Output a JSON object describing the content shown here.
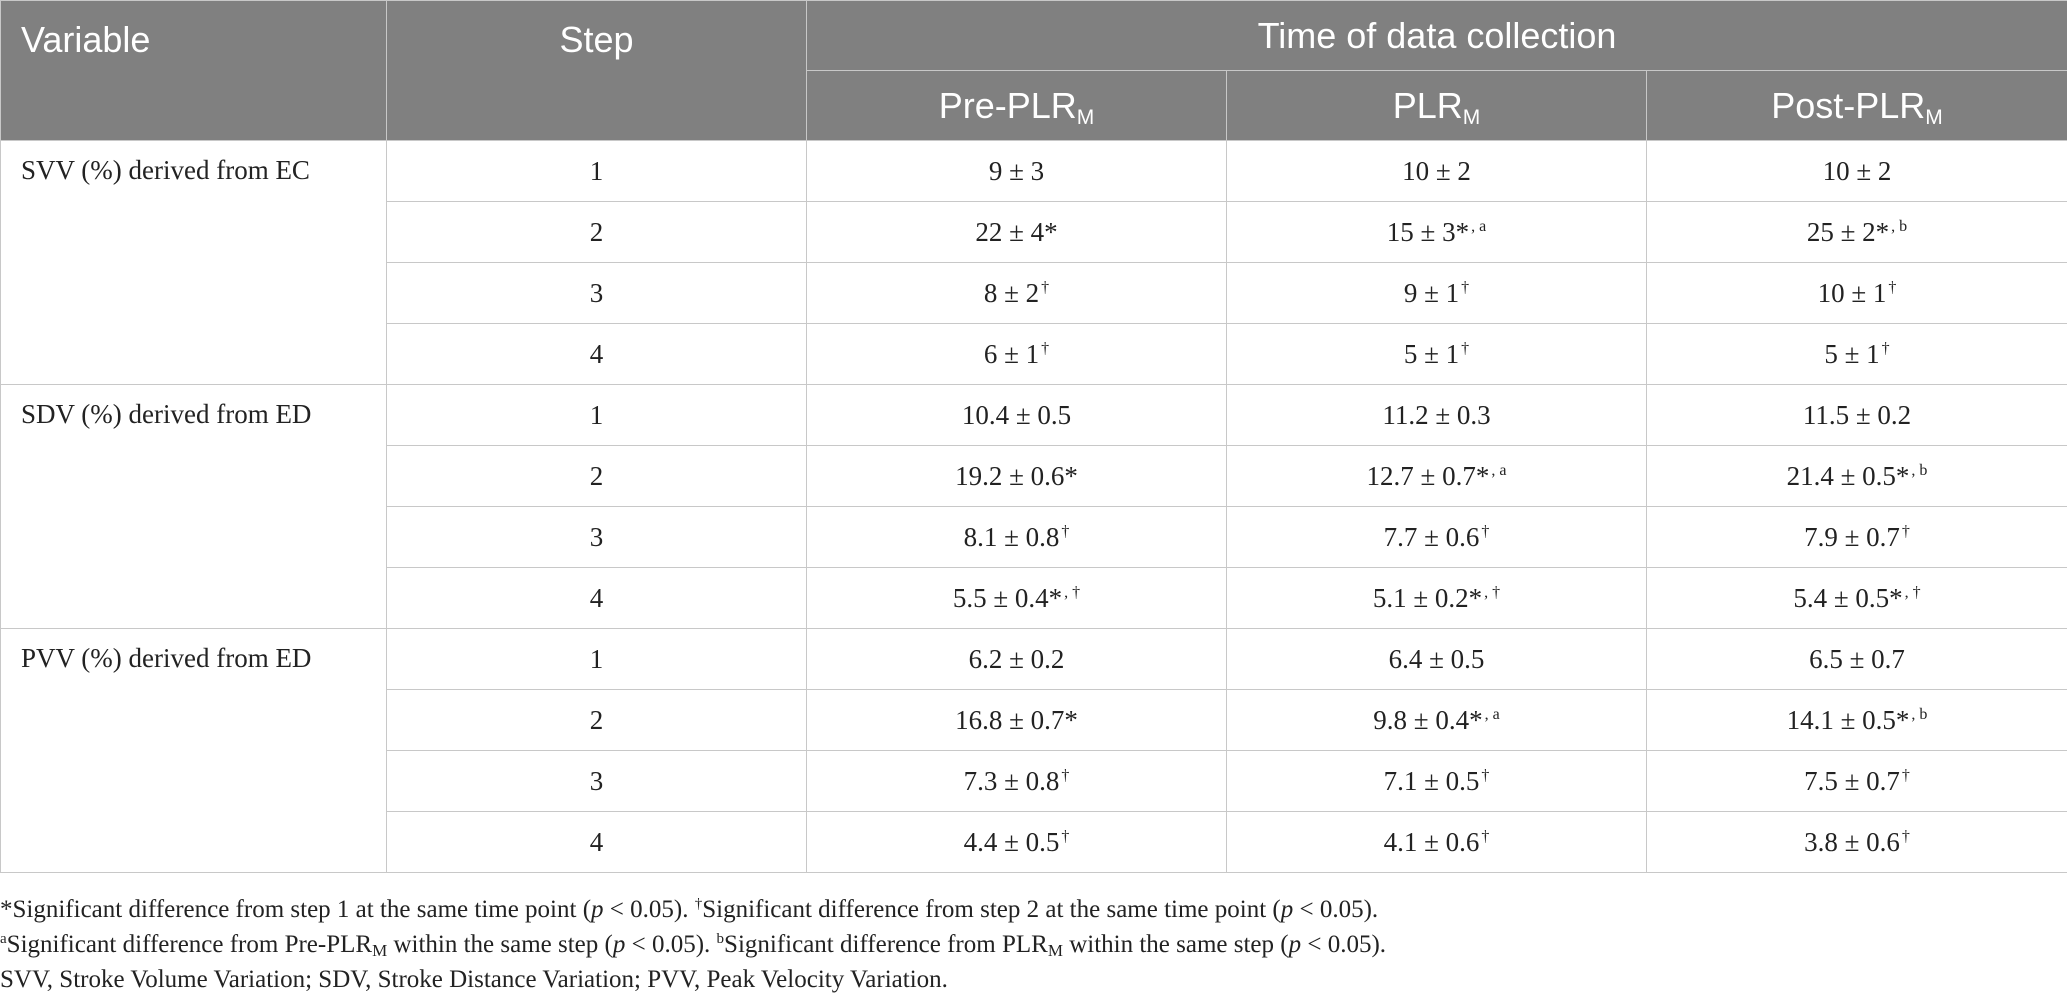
{
  "table": {
    "header": {
      "variable": "Variable",
      "step": "Step",
      "group": "Time of data collection",
      "columns": [
        {
          "base": "Pre-PLR",
          "sub": "M"
        },
        {
          "base": "PLR",
          "sub": "M"
        },
        {
          "base": "Post-PLR",
          "sub": "M"
        }
      ]
    },
    "groups": [
      {
        "variable": "SVV (%) derived from EC",
        "rows": [
          {
            "step": "1",
            "cells": [
              {
                "v": "9 ± 3",
                "s": ""
              },
              {
                "v": "10 ± 2",
                "s": ""
              },
              {
                "v": "10 ± 2",
                "s": ""
              }
            ]
          },
          {
            "step": "2",
            "cells": [
              {
                "v": "22 ± 4*",
                "s": ""
              },
              {
                "v": "15 ± 3*",
                "s": ", a"
              },
              {
                "v": "25 ± 2*",
                "s": ", b"
              }
            ]
          },
          {
            "step": "3",
            "cells": [
              {
                "v": "8 ± 2",
                "s": "†"
              },
              {
                "v": "9 ± 1",
                "s": "†"
              },
              {
                "v": "10 ± 1",
                "s": "†"
              }
            ]
          },
          {
            "step": "4",
            "cells": [
              {
                "v": "6 ± 1",
                "s": "†"
              },
              {
                "v": "5 ± 1",
                "s": "†"
              },
              {
                "v": "5 ± 1",
                "s": "†"
              }
            ]
          }
        ]
      },
      {
        "variable": "SDV (%) derived from ED",
        "rows": [
          {
            "step": "1",
            "cells": [
              {
                "v": "10.4 ± 0.5",
                "s": ""
              },
              {
                "v": "11.2 ± 0.3",
                "s": ""
              },
              {
                "v": "11.5 ± 0.2",
                "s": ""
              }
            ]
          },
          {
            "step": "2",
            "cells": [
              {
                "v": "19.2 ± 0.6*",
                "s": ""
              },
              {
                "v": "12.7 ± 0.7*",
                "s": ", a"
              },
              {
                "v": "21.4 ± 0.5*",
                "s": ", b"
              }
            ]
          },
          {
            "step": "3",
            "cells": [
              {
                "v": "8.1 ± 0.8",
                "s": "†"
              },
              {
                "v": "7.7 ± 0.6",
                "s": "†"
              },
              {
                "v": "7.9 ± 0.7",
                "s": "†"
              }
            ]
          },
          {
            "step": "4",
            "cells": [
              {
                "v": "5.5 ± 0.4*",
                "s": ", †"
              },
              {
                "v": "5.1 ± 0.2*",
                "s": ", †"
              },
              {
                "v": "5.4 ± 0.5*",
                "s": ", †"
              }
            ]
          }
        ]
      },
      {
        "variable": "PVV (%) derived from ED",
        "rows": [
          {
            "step": "1",
            "cells": [
              {
                "v": "6.2 ± 0.2",
                "s": ""
              },
              {
                "v": "6.4 ± 0.5",
                "s": ""
              },
              {
                "v": "6.5 ± 0.7",
                "s": ""
              }
            ]
          },
          {
            "step": "2",
            "cells": [
              {
                "v": "16.8 ± 0.7*",
                "s": ""
              },
              {
                "v": "9.8 ± 0.4*",
                "s": ", a"
              },
              {
                "v": "14.1 ± 0.5*",
                "s": ", b"
              }
            ]
          },
          {
            "step": "3",
            "cells": [
              {
                "v": "7.3 ± 0.8",
                "s": "†"
              },
              {
                "v": "7.1 ± 0.5",
                "s": "†"
              },
              {
                "v": "7.5 ± 0.7",
                "s": "†"
              }
            ]
          },
          {
            "step": "4",
            "cells": [
              {
                "v": "4.4 ± 0.5",
                "s": "†"
              },
              {
                "v": "4.1 ± 0.6",
                "s": "†"
              },
              {
                "v": "3.8 ± 0.6",
                "s": "†"
              }
            ]
          }
        ]
      }
    ]
  },
  "footnotes": {
    "line1": {
      "a": "*Significant difference from step 1 at the same time point (",
      "p1": "p",
      "b": " < 0.05). ",
      "dagger": "†",
      "c": "Significant difference from step 2 at the same time point (",
      "p2": "p",
      "d": " < 0.05)."
    },
    "line2": {
      "amark": "a",
      "a": "Significant difference from Pre-PLR",
      "sub1": "M",
      "b": " within the same step (",
      "p1": "p",
      "c": " < 0.05). ",
      "bmark": "b",
      "d": "Significant difference from PLR",
      "sub2": "M",
      "e": " within the same step (",
      "p2": "p",
      "f": " < 0.05)."
    },
    "line3": "SVV, Stroke Volume Variation; SDV, Stroke Distance Variation; PVV, Peak Velocity Variation."
  }
}
